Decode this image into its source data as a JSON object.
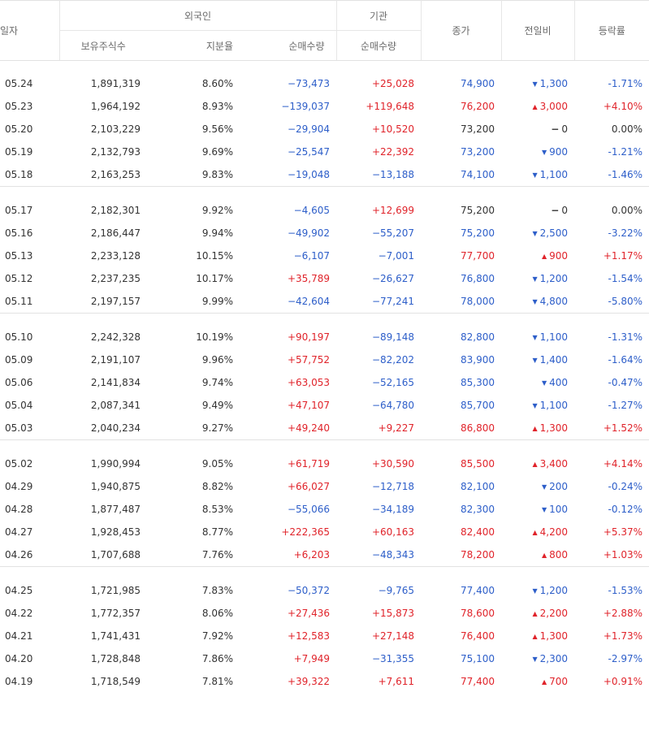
{
  "header": {
    "date": "일자",
    "foreign": "외국인",
    "institution": "기관",
    "close": "종가",
    "change": "전일비",
    "rate": "등락률",
    "holdings": "보유주식수",
    "ratio": "지분율",
    "foreign_net": "순매수량",
    "inst_net": "순매수량"
  },
  "colors": {
    "up": "#e0232a",
    "down": "#2d5ec9",
    "flat": "#333333"
  },
  "icons": {
    "up": "▲",
    "down": "▼",
    "flat": "−"
  },
  "groups": [
    {
      "rows": [
        {
          "date": "05.24",
          "hold": "1,891,319",
          "ratio": "8.60%",
          "fnet": "−73,473",
          "fdir": "down",
          "inet": "+25,028",
          "idir": "up",
          "close": "74,900",
          "cdir": "down",
          "chg": "1,300",
          "rate": "-1.71%"
        },
        {
          "date": "05.23",
          "hold": "1,964,192",
          "ratio": "8.93%",
          "fnet": "−139,037",
          "fdir": "down",
          "inet": "+119,648",
          "idir": "up",
          "close": "76,200",
          "cdir": "up",
          "chg": "3,000",
          "rate": "+4.10%"
        },
        {
          "date": "05.20",
          "hold": "2,103,229",
          "ratio": "9.56%",
          "fnet": "−29,904",
          "fdir": "down",
          "inet": "+10,520",
          "idir": "up",
          "close": "73,200",
          "cdir": "flat",
          "chg": "0",
          "rate": "0.00%"
        },
        {
          "date": "05.19",
          "hold": "2,132,793",
          "ratio": "9.69%",
          "fnet": "−25,547",
          "fdir": "down",
          "inet": "+22,392",
          "idir": "up",
          "close": "73,200",
          "cdir": "down",
          "chg": "900",
          "rate": "-1.21%"
        },
        {
          "date": "05.18",
          "hold": "2,163,253",
          "ratio": "9.83%",
          "fnet": "−19,048",
          "fdir": "down",
          "inet": "−13,188",
          "idir": "down",
          "close": "74,100",
          "cdir": "down",
          "chg": "1,100",
          "rate": "-1.46%"
        }
      ]
    },
    {
      "rows": [
        {
          "date": "05.17",
          "hold": "2,182,301",
          "ratio": "9.92%",
          "fnet": "−4,605",
          "fdir": "down",
          "inet": "+12,699",
          "idir": "up",
          "close": "75,200",
          "cdir": "flat",
          "chg": "0",
          "rate": "0.00%"
        },
        {
          "date": "05.16",
          "hold": "2,186,447",
          "ratio": "9.94%",
          "fnet": "−49,902",
          "fdir": "down",
          "inet": "−55,207",
          "idir": "down",
          "close": "75,200",
          "cdir": "down",
          "chg": "2,500",
          "rate": "-3.22%"
        },
        {
          "date": "05.13",
          "hold": "2,233,128",
          "ratio": "10.15%",
          "fnet": "−6,107",
          "fdir": "down",
          "inet": "−7,001",
          "idir": "down",
          "close": "77,700",
          "cdir": "up",
          "chg": "900",
          "rate": "+1.17%"
        },
        {
          "date": "05.12",
          "hold": "2,237,235",
          "ratio": "10.17%",
          "fnet": "+35,789",
          "fdir": "up",
          "inet": "−26,627",
          "idir": "down",
          "close": "76,800",
          "cdir": "down",
          "chg": "1,200",
          "rate": "-1.54%"
        },
        {
          "date": "05.11",
          "hold": "2,197,157",
          "ratio": "9.99%",
          "fnet": "−42,604",
          "fdir": "down",
          "inet": "−77,241",
          "idir": "down",
          "close": "78,000",
          "cdir": "down",
          "chg": "4,800",
          "rate": "-5.80%"
        }
      ]
    },
    {
      "rows": [
        {
          "date": "05.10",
          "hold": "2,242,328",
          "ratio": "10.19%",
          "fnet": "+90,197",
          "fdir": "up",
          "inet": "−89,148",
          "idir": "down",
          "close": "82,800",
          "cdir": "down",
          "chg": "1,100",
          "rate": "-1.31%"
        },
        {
          "date": "05.09",
          "hold": "2,191,107",
          "ratio": "9.96%",
          "fnet": "+57,752",
          "fdir": "up",
          "inet": "−82,202",
          "idir": "down",
          "close": "83,900",
          "cdir": "down",
          "chg": "1,400",
          "rate": "-1.64%"
        },
        {
          "date": "05.06",
          "hold": "2,141,834",
          "ratio": "9.74%",
          "fnet": "+63,053",
          "fdir": "up",
          "inet": "−52,165",
          "idir": "down",
          "close": "85,300",
          "cdir": "down",
          "chg": "400",
          "rate": "-0.47%"
        },
        {
          "date": "05.04",
          "hold": "2,087,341",
          "ratio": "9.49%",
          "fnet": "+47,107",
          "fdir": "up",
          "inet": "−64,780",
          "idir": "down",
          "close": "85,700",
          "cdir": "down",
          "chg": "1,100",
          "rate": "-1.27%"
        },
        {
          "date": "05.03",
          "hold": "2,040,234",
          "ratio": "9.27%",
          "fnet": "+49,240",
          "fdir": "up",
          "inet": "+9,227",
          "idir": "up",
          "close": "86,800",
          "cdir": "up",
          "chg": "1,300",
          "rate": "+1.52%"
        }
      ]
    },
    {
      "rows": [
        {
          "date": "05.02",
          "hold": "1,990,994",
          "ratio": "9.05%",
          "fnet": "+61,719",
          "fdir": "up",
          "inet": "+30,590",
          "idir": "up",
          "close": "85,500",
          "cdir": "up",
          "chg": "3,400",
          "rate": "+4.14%"
        },
        {
          "date": "04.29",
          "hold": "1,940,875",
          "ratio": "8.82%",
          "fnet": "+66,027",
          "fdir": "up",
          "inet": "−12,718",
          "idir": "down",
          "close": "82,100",
          "cdir": "down",
          "chg": "200",
          "rate": "-0.24%"
        },
        {
          "date": "04.28",
          "hold": "1,877,487",
          "ratio": "8.53%",
          "fnet": "−55,066",
          "fdir": "down",
          "inet": "−34,189",
          "idir": "down",
          "close": "82,300",
          "cdir": "down",
          "chg": "100",
          "rate": "-0.12%"
        },
        {
          "date": "04.27",
          "hold": "1,928,453",
          "ratio": "8.77%",
          "fnet": "+222,365",
          "fdir": "up",
          "inet": "+60,163",
          "idir": "up",
          "close": "82,400",
          "cdir": "up",
          "chg": "4,200",
          "rate": "+5.37%"
        },
        {
          "date": "04.26",
          "hold": "1,707,688",
          "ratio": "7.76%",
          "fnet": "+6,203",
          "fdir": "up",
          "inet": "−48,343",
          "idir": "down",
          "close": "78,200",
          "cdir": "up",
          "chg": "800",
          "rate": "+1.03%"
        }
      ]
    },
    {
      "rows": [
        {
          "date": "04.25",
          "hold": "1,721,985",
          "ratio": "7.83%",
          "fnet": "−50,372",
          "fdir": "down",
          "inet": "−9,765",
          "idir": "down",
          "close": "77,400",
          "cdir": "down",
          "chg": "1,200",
          "rate": "-1.53%"
        },
        {
          "date": "04.22",
          "hold": "1,772,357",
          "ratio": "8.06%",
          "fnet": "+27,436",
          "fdir": "up",
          "inet": "+15,873",
          "idir": "up",
          "close": "78,600",
          "cdir": "up",
          "chg": "2,200",
          "rate": "+2.88%"
        },
        {
          "date": "04.21",
          "hold": "1,741,431",
          "ratio": "7.92%",
          "fnet": "+12,583",
          "fdir": "up",
          "inet": "+27,148",
          "idir": "up",
          "close": "76,400",
          "cdir": "up",
          "chg": "1,300",
          "rate": "+1.73%"
        },
        {
          "date": "04.20",
          "hold": "1,728,848",
          "ratio": "7.86%",
          "fnet": "+7,949",
          "fdir": "up",
          "inet": "−31,355",
          "idir": "down",
          "close": "75,100",
          "cdir": "down",
          "chg": "2,300",
          "rate": "-2.97%"
        },
        {
          "date": "04.19",
          "hold": "1,718,549",
          "ratio": "7.81%",
          "fnet": "+39,322",
          "fdir": "up",
          "inet": "+7,611",
          "idir": "up",
          "close": "77,400",
          "cdir": "up",
          "chg": "700",
          "rate": "+0.91%"
        }
      ]
    }
  ]
}
